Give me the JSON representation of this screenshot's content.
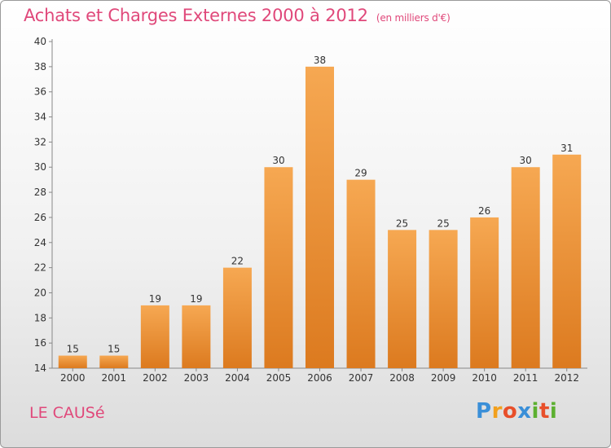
{
  "header": {
    "title": "Achats et Charges Externes 2000 à 2012",
    "subtitle": "(en milliers d'€)"
  },
  "footer": {
    "commune": "LE CAUSé",
    "logo_letters": [
      "P",
      "r",
      "o",
      "x",
      "i",
      "t",
      "i"
    ],
    "logo_colors": [
      "#3a8fd8",
      "#f2a01d",
      "#e84f2a",
      "#3a8fd8",
      "#5cb030",
      "#e84f2a",
      "#5cb030"
    ]
  },
  "colors": {
    "bar_top": "#f6a852",
    "bar_bottom": "#dc7a1f",
    "accent": "#e0487a"
  },
  "chart_data": {
    "type": "bar",
    "title": "Achats et Charges Externes 2000 à 2012",
    "subtitle": "(en milliers d'€)",
    "categories": [
      "2000",
      "2001",
      "2002",
      "2003",
      "2004",
      "2005",
      "2006",
      "2007",
      "2008",
      "2009",
      "2010",
      "2011",
      "2012"
    ],
    "values": [
      15,
      15,
      19,
      19,
      22,
      30,
      38,
      29,
      25,
      25,
      26,
      30,
      31
    ],
    "ylim": [
      14,
      40
    ],
    "yticks": [
      14,
      16,
      18,
      20,
      22,
      24,
      26,
      28,
      30,
      32,
      34,
      36,
      38,
      40
    ],
    "grid": false,
    "legend": "none"
  }
}
